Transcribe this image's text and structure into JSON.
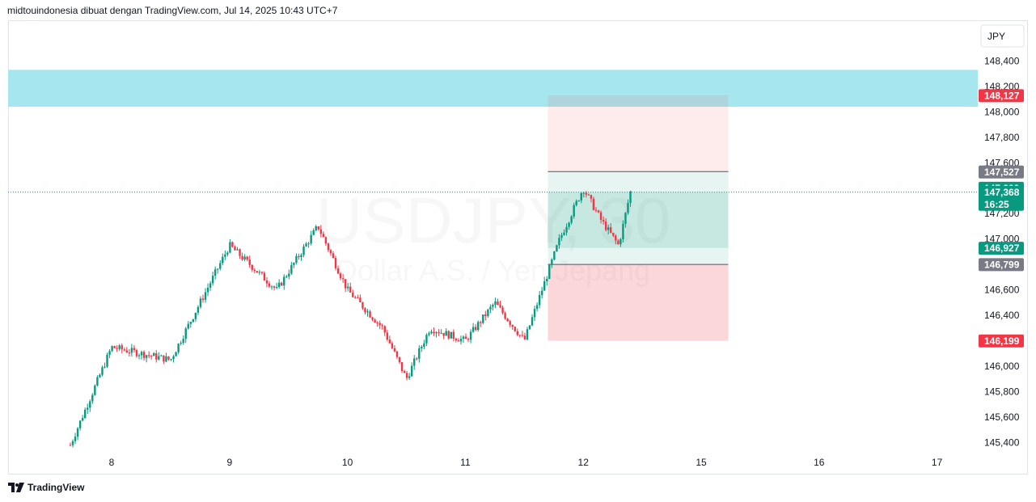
{
  "header": {
    "text": "midtouindonesia dibuat dengan TradingView.com, Jul 14, 2025 10:43 UTC+7"
  },
  "footer": {
    "brand": "TradingView",
    "logo_icon": "tradingview-logo-icon"
  },
  "colors": {
    "up": "#089981",
    "down": "#f23645",
    "zone": "#a6e6ef",
    "stop_zone": "#f7c4c9",
    "target_zone": "#cdeee6",
    "badge_gray": "#787b86"
  },
  "chart_data": {
    "type": "candlestick",
    "symbol_watermark": "USDJPY, 30",
    "description_watermark": "Dollar A.S. / Yen Jepang",
    "currency_label": "JPY",
    "x_ticks": [
      "8",
      "9",
      "10",
      "11",
      "12",
      "15",
      "16",
      "17"
    ],
    "y_ticks": [
      "148,400",
      "148,200",
      "148,000",
      "147,800",
      "147,600",
      "147,400",
      "147,200",
      "147,000",
      "146,800",
      "146,600",
      "146,400",
      "146,200",
      "146,000",
      "145,800",
      "145,600",
      "145,400"
    ],
    "y_tick_values": [
      148.4,
      148.2,
      148.0,
      147.8,
      147.6,
      147.4,
      147.2,
      147.0,
      146.8,
      146.6,
      146.4,
      146.2,
      146.0,
      145.8,
      145.6,
      145.4
    ],
    "ylim": [
      145.32,
      148.53
    ],
    "x_day_index": [
      0,
      1,
      2,
      3,
      4,
      5,
      6,
      7
    ],
    "path_day": [
      -0.35,
      0.0,
      0.5,
      1.0,
      1.4,
      1.75,
      2.0,
      2.3,
      2.5,
      2.7,
      3.0,
      3.25,
      3.5,
      3.8,
      4.0,
      4.15,
      4.3,
      4.4
    ],
    "path_price": [
      145.38,
      146.15,
      146.05,
      146.95,
      146.6,
      147.1,
      146.6,
      146.3,
      145.9,
      146.3,
      146.2,
      146.5,
      146.2,
      147.0,
      147.4,
      147.15,
      146.95,
      147.37
    ],
    "supply_zone": {
      "from": 148.33,
      "to": 148.04
    },
    "position": {
      "start_day": 3.7,
      "end_day": 5.23,
      "stop": 148.13,
      "entry_upper": 147.53,
      "current": 147.37,
      "target_lower": 146.93,
      "entry_lower": 146.8,
      "take_profit": 146.2
    },
    "price_badges": [
      {
        "label": "148,127",
        "value": 148.127,
        "color": "#f23645"
      },
      {
        "label": "147,527",
        "value": 147.527,
        "color": "#787b86"
      },
      {
        "label": "147,399",
        "value": 147.399,
        "color": "#089981"
      },
      {
        "label": "147,368",
        "value": 147.368,
        "color": "#089981",
        "sub": "16:25"
      },
      {
        "label": "146,927",
        "value": 146.927,
        "color": "#089981"
      },
      {
        "label": "146,799",
        "value": 146.799,
        "color": "#787b86"
      },
      {
        "label": "146,199",
        "value": 146.199,
        "color": "#f23645"
      }
    ],
    "last_price": 147.368
  }
}
